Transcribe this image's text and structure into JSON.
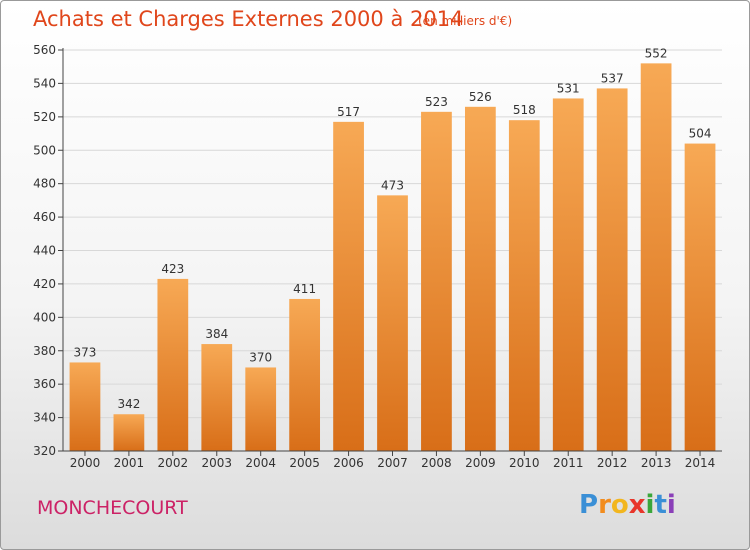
{
  "title": "Achats et Charges Externes 2000 à 2014",
  "subtitle": "(en milliers d'€)",
  "place": "MONCHECOURT",
  "logo": {
    "letters": [
      "P",
      "r",
      "o",
      "x",
      "i",
      "t",
      "i"
    ],
    "colors": [
      "#3a8fd6",
      "#f28c1e",
      "#f2b61e",
      "#e8352a",
      "#3aa63a",
      "#3a8fd6",
      "#8a3fb8"
    ]
  },
  "colors": {
    "bar_top": "#f7a955",
    "bar_bottom": "#d86e18",
    "title": "#e0461b",
    "grid": "#d8d8d8",
    "axis": "#444444"
  },
  "chart_data": {
    "type": "bar",
    "title": "Achats et Charges Externes 2000 à 2014",
    "subtitle": "(en milliers d'€)",
    "categories": [
      "2000",
      "2001",
      "2002",
      "2003",
      "2004",
      "2005",
      "2006",
      "2007",
      "2008",
      "2009",
      "2010",
      "2011",
      "2012",
      "2013",
      "2014"
    ],
    "values": [
      373,
      342,
      423,
      384,
      370,
      411,
      517,
      473,
      523,
      526,
      518,
      531,
      537,
      552,
      504
    ],
    "ylim": [
      320,
      560
    ],
    "yticks": [
      320,
      340,
      360,
      380,
      400,
      420,
      440,
      460,
      480,
      500,
      520,
      540,
      560
    ],
    "grid": true,
    "legend": "none"
  }
}
